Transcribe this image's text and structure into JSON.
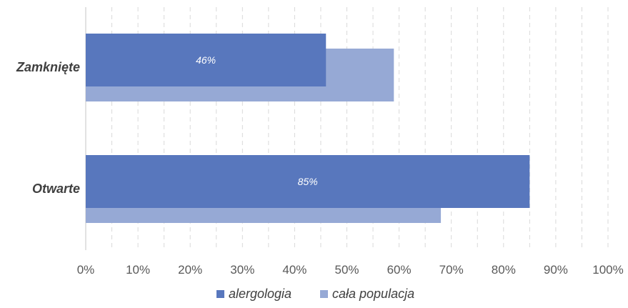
{
  "chart_data": {
    "type": "bar",
    "orientation": "horizontal",
    "categories": [
      "Zamknięte",
      "Otwarte"
    ],
    "series": [
      {
        "name": "alergologia",
        "values": [
          46,
          85
        ],
        "color": "#5877BD",
        "data_labels": [
          "46%",
          "85%"
        ]
      },
      {
        "name": "cała populacja",
        "values": [
          59,
          68
        ],
        "color": "#96A9D5"
      }
    ],
    "xlim": [
      0,
      100
    ],
    "x_ticks": [
      0,
      10,
      20,
      30,
      40,
      50,
      60,
      70,
      80,
      90,
      100
    ],
    "x_tick_labels": [
      "0%",
      "10%",
      "20%",
      "30%",
      "40%",
      "50%",
      "60%",
      "70%",
      "80%",
      "90%",
      "100%"
    ],
    "grid": "vertical dashed",
    "legend_position": "bottom",
    "title": "",
    "xlabel": "",
    "ylabel": ""
  }
}
